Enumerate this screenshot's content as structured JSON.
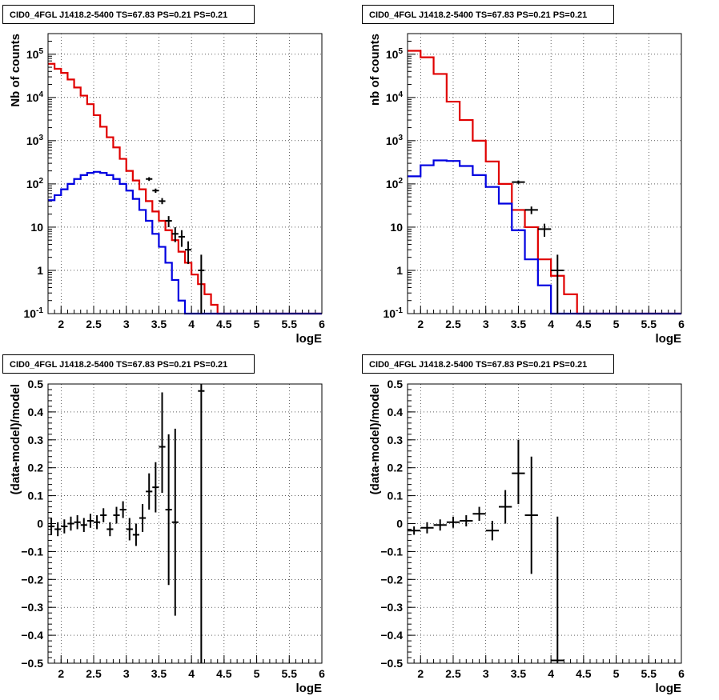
{
  "chart_data": [
    {
      "type": "line",
      "title": "CID0_4FGL J1418.2-5400 TS=67.83 PS=0.21 PS=0.21",
      "xlabel": "logE",
      "ylabel": "Nb of counts",
      "log_y": true,
      "xlim": [
        1.8,
        6.0
      ],
      "ylim": [
        0.1,
        300000
      ],
      "grid": true,
      "x_ticks": [
        "2",
        "2.5",
        "3",
        "3.5",
        "4",
        "4.5",
        "5",
        "5.5",
        "6"
      ],
      "y_ticks": [
        "10^-1",
        "1",
        "10",
        "10^2",
        "10^3",
        "10^4",
        "10^5"
      ],
      "colors": {
        "total": "#e00000",
        "source": "#0000e0",
        "data": "#000000"
      },
      "bin_edges": [
        1.8,
        1.9,
        2.0,
        2.1,
        2.2,
        2.3,
        2.4,
        2.5,
        2.6,
        2.7,
        2.8,
        2.9,
        3.0,
        3.1,
        3.2,
        3.3,
        3.4,
        3.5,
        3.6,
        3.7,
        3.8,
        3.9,
        4.0,
        4.1,
        4.2,
        4.3,
        4.4,
        4.5,
        4.6,
        4.7,
        4.8,
        4.9,
        5.0,
        5.1,
        5.2,
        5.3,
        5.4,
        5.5,
        5.6,
        5.7,
        5.8,
        5.9,
        6.0
      ],
      "series": [
        {
          "role": "total",
          "values": [
            60000,
            46000,
            37000,
            26000,
            17000,
            11000,
            7000,
            3900,
            2100,
            1200,
            700,
            380,
            200,
            120,
            75,
            40,
            23,
            14,
            8.5,
            5,
            2.7,
            1.5,
            0.8,
            0.48,
            0.28,
            0.16,
            0.1,
            0.1,
            0.1,
            0.1,
            0.1,
            0.1,
            0.1,
            0.1,
            0.1,
            0.1,
            0.1,
            0.1,
            0.1,
            0.1,
            0.1,
            0.1
          ]
        },
        {
          "role": "source",
          "values": [
            42,
            55,
            75,
            100,
            130,
            160,
            180,
            190,
            180,
            160,
            130,
            100,
            70,
            45,
            25,
            14,
            7,
            3.5,
            1.5,
            0.6,
            0.2,
            0.1,
            0.1,
            0.1,
            0.1,
            0.1,
            0.1,
            0.1,
            0.1,
            0.1,
            0.1,
            0.1,
            0.1,
            0.1,
            0.1,
            0.1,
            0.1,
            0.1,
            0.1,
            0.1,
            0.1,
            0.1
          ]
        }
      ],
      "points": [
        {
          "x": 3.35,
          "y": 130,
          "xerr": 0.05,
          "ylo": 117,
          "yhi": 143
        },
        {
          "x": 3.45,
          "y": 70,
          "xerr": 0.05,
          "ylo": 62,
          "yhi": 78
        },
        {
          "x": 3.55,
          "y": 40,
          "xerr": 0.05,
          "ylo": 34,
          "yhi": 47
        },
        {
          "x": 3.65,
          "y": 14,
          "xerr": 0.05,
          "ylo": 10,
          "yhi": 18
        },
        {
          "x": 3.75,
          "y": 7,
          "xerr": 0.05,
          "ylo": 4.5,
          "yhi": 10
        },
        {
          "x": 3.85,
          "y": 6,
          "xerr": 0.05,
          "ylo": 3.5,
          "yhi": 8.5
        },
        {
          "x": 3.95,
          "y": 3,
          "xerr": 0.05,
          "ylo": 1.4,
          "yhi": 4.7
        },
        {
          "x": 4.15,
          "y": 1,
          "xerr": 0.05,
          "ylo": 0.1,
          "yhi": 2.3
        }
      ]
    },
    {
      "type": "line",
      "title": "CID0_4FGL J1418.2-5400 TS=67.83 PS=0.21 PS=0.21",
      "xlabel": "logE",
      "ylabel": "nb of counts",
      "log_y": true,
      "xlim": [
        1.8,
        6.0
      ],
      "ylim": [
        0.1,
        300000
      ],
      "grid": true,
      "x_ticks": [
        "2",
        "2.5",
        "3",
        "3.5",
        "4",
        "4.5",
        "5",
        "5.5",
        "6"
      ],
      "y_ticks": [
        "10^-1",
        "1",
        "10",
        "10^2",
        "10^3",
        "10^4",
        "10^5"
      ],
      "colors": {
        "total": "#e00000",
        "source": "#0000e0",
        "data": "#000000"
      },
      "bin_edges": [
        1.8,
        2.0,
        2.2,
        2.4,
        2.6,
        2.8,
        3.0,
        3.2,
        3.4,
        3.6,
        3.8,
        4.0,
        4.2,
        4.4,
        4.6,
        4.8,
        5.0,
        5.2,
        5.4,
        5.6,
        5.8,
        6.0
      ],
      "series": [
        {
          "role": "total",
          "values": [
            120000,
            85000,
            35000,
            8000,
            3000,
            1000,
            330,
            100,
            25,
            10,
            1.8,
            0.75,
            0.28,
            0.1,
            0.1,
            0.1,
            0.1,
            0.1,
            0.1,
            0.1,
            0.1
          ]
        },
        {
          "role": "source",
          "values": [
            150,
            270,
            350,
            340,
            260,
            160,
            85,
            35,
            8.5,
            1.8,
            0.45,
            0.1,
            0.1,
            0.1,
            0.1,
            0.1,
            0.1,
            0.1,
            0.1,
            0.1,
            0.1
          ]
        }
      ],
      "points": [
        {
          "x": 3.5,
          "y": 110,
          "xerr": 0.1,
          "ylo": 100,
          "yhi": 120
        },
        {
          "x": 3.7,
          "y": 25,
          "xerr": 0.1,
          "ylo": 20,
          "yhi": 30
        },
        {
          "x": 3.9,
          "y": 9,
          "xerr": 0.1,
          "ylo": 6,
          "yhi": 12
        },
        {
          "x": 4.1,
          "y": 1,
          "xerr": 0.1,
          "ylo": 0.1,
          "yhi": 2.3
        }
      ]
    },
    {
      "type": "scatter",
      "title": "CID0_4FGL J1418.2-5400 TS=67.83 PS=0.21 PS=0.21",
      "xlabel": "logE",
      "ylabel": "(data-model)/model",
      "log_y": false,
      "xlim": [
        1.8,
        6.0
      ],
      "ylim": [
        -0.5,
        0.5
      ],
      "grid": true,
      "x_ticks": [
        "2",
        "2.5",
        "3",
        "3.5",
        "4",
        "4.5",
        "5",
        "5.5",
        "6"
      ],
      "y_ticks": [
        "-0.5",
        "-0.4",
        "-0.3",
        "-0.2",
        "-0.1",
        "0",
        "0.1",
        "0.2",
        "0.3",
        "0.4",
        "0.5"
      ],
      "points": [
        {
          "x": 1.85,
          "y": -0.01,
          "xerr": 0.05,
          "ylo": -0.04,
          "yhi": 0.02
        },
        {
          "x": 1.95,
          "y": -0.02,
          "xerr": 0.05,
          "ylo": -0.045,
          "yhi": 0.005
        },
        {
          "x": 2.05,
          "y": -0.01,
          "xerr": 0.05,
          "ylo": -0.035,
          "yhi": 0.015
        },
        {
          "x": 2.15,
          "y": 0.0,
          "xerr": 0.05,
          "ylo": -0.025,
          "yhi": 0.025
        },
        {
          "x": 2.25,
          "y": 0.005,
          "xerr": 0.05,
          "ylo": -0.02,
          "yhi": 0.03
        },
        {
          "x": 2.35,
          "y": -0.005,
          "xerr": 0.05,
          "ylo": -0.03,
          "yhi": 0.02
        },
        {
          "x": 2.45,
          "y": 0.01,
          "xerr": 0.05,
          "ylo": -0.015,
          "yhi": 0.035
        },
        {
          "x": 2.55,
          "y": 0.005,
          "xerr": 0.05,
          "ylo": -0.02,
          "yhi": 0.03
        },
        {
          "x": 2.65,
          "y": 0.03,
          "xerr": 0.05,
          "ylo": 0.005,
          "yhi": 0.055
        },
        {
          "x": 2.75,
          "y": -0.02,
          "xerr": 0.05,
          "ylo": -0.045,
          "yhi": 0.005
        },
        {
          "x": 2.85,
          "y": 0.03,
          "xerr": 0.05,
          "ylo": 0.0,
          "yhi": 0.06
        },
        {
          "x": 2.95,
          "y": 0.05,
          "xerr": 0.05,
          "ylo": 0.02,
          "yhi": 0.08
        },
        {
          "x": 3.05,
          "y": -0.02,
          "xerr": 0.05,
          "ylo": -0.06,
          "yhi": 0.02
        },
        {
          "x": 3.15,
          "y": -0.04,
          "xerr": 0.05,
          "ylo": -0.08,
          "yhi": 0.0
        },
        {
          "x": 3.25,
          "y": 0.02,
          "xerr": 0.05,
          "ylo": -0.03,
          "yhi": 0.07
        },
        {
          "x": 3.35,
          "y": 0.115,
          "xerr": 0.05,
          "ylo": 0.05,
          "yhi": 0.18
        },
        {
          "x": 3.45,
          "y": 0.13,
          "xerr": 0.05,
          "ylo": 0.04,
          "yhi": 0.22
        },
        {
          "x": 3.55,
          "y": 0.275,
          "xerr": 0.05,
          "ylo": 0.11,
          "yhi": 0.47
        },
        {
          "x": 3.65,
          "y": 0.05,
          "xerr": 0.05,
          "ylo": -0.22,
          "yhi": 0.32
        },
        {
          "x": 3.75,
          "y": 0.005,
          "xerr": 0.05,
          "ylo": -0.33,
          "yhi": 0.34
        },
        {
          "x": 4.15,
          "y": 0.475,
          "xerr": 0.05,
          "ylo": -0.5,
          "yhi": 0.5
        }
      ]
    },
    {
      "type": "scatter",
      "title": "CID0_4FGL J1418.2-5400 TS=67.83 PS=0.21 PS=0.21",
      "xlabel": "logE",
      "ylabel": "(data-model)/model",
      "log_y": false,
      "xlim": [
        1.8,
        6.0
      ],
      "ylim": [
        -0.5,
        0.5
      ],
      "grid": true,
      "x_ticks": [
        "2",
        "2.5",
        "3",
        "3.5",
        "4",
        "4.5",
        "5",
        "5.5",
        "6"
      ],
      "y_ticks": [
        "-0.5",
        "-0.4",
        "-0.3",
        "-0.2",
        "-0.1",
        "0",
        "0.1",
        "0.2",
        "0.3",
        "0.4",
        "0.5"
      ],
      "points": [
        {
          "x": 1.9,
          "y": -0.025,
          "xerr": 0.1,
          "ylo": -0.04,
          "yhi": -0.01
        },
        {
          "x": 2.1,
          "y": -0.015,
          "xerr": 0.1,
          "ylo": -0.035,
          "yhi": 0.005
        },
        {
          "x": 2.3,
          "y": -0.005,
          "xerr": 0.1,
          "ylo": -0.025,
          "yhi": 0.015
        },
        {
          "x": 2.5,
          "y": 0.005,
          "xerr": 0.1,
          "ylo": -0.015,
          "yhi": 0.025
        },
        {
          "x": 2.7,
          "y": 0.01,
          "xerr": 0.1,
          "ylo": -0.01,
          "yhi": 0.03
        },
        {
          "x": 2.9,
          "y": 0.035,
          "xerr": 0.1,
          "ylo": 0.01,
          "yhi": 0.06
        },
        {
          "x": 3.1,
          "y": -0.025,
          "xerr": 0.1,
          "ylo": -0.06,
          "yhi": 0.01
        },
        {
          "x": 3.3,
          "y": 0.06,
          "xerr": 0.1,
          "ylo": 0.0,
          "yhi": 0.12
        },
        {
          "x": 3.5,
          "y": 0.18,
          "xerr": 0.1,
          "ylo": 0.07,
          "yhi": 0.3
        },
        {
          "x": 3.7,
          "y": 0.03,
          "xerr": 0.1,
          "ylo": -0.18,
          "yhi": 0.24
        },
        {
          "x": 4.1,
          "y": -0.49,
          "xerr": 0.1,
          "ylo": -0.5,
          "yhi": 0.025
        }
      ]
    }
  ]
}
